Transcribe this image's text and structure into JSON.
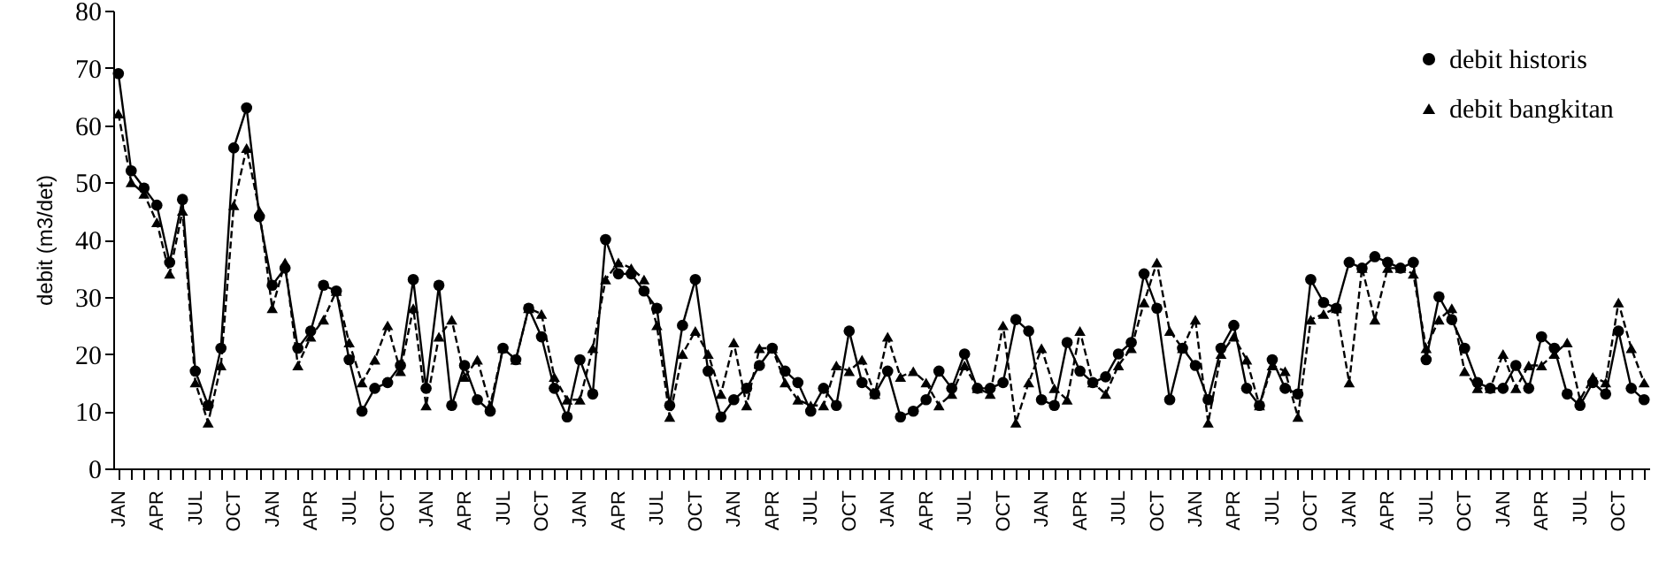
{
  "chart_data": {
    "type": "line",
    "ylabel": "debit (m3/det)",
    "categories": [
      "JAN",
      null,
      null,
      "APR",
      null,
      null,
      "JUL",
      null,
      null,
      "OCT",
      null,
      null,
      "JAN",
      null,
      null,
      "APR",
      null,
      null,
      "JUL",
      null,
      null,
      "OCT",
      null,
      null,
      "JAN",
      null,
      null,
      "APR",
      null,
      null,
      "JUL",
      null,
      null,
      "OCT",
      null,
      null,
      "JAN",
      null,
      null,
      "APR",
      null,
      null,
      "JUL",
      null,
      null,
      "OCT",
      null,
      null,
      "JAN",
      null,
      null,
      "APR",
      null,
      null,
      "JUL",
      null,
      null,
      "OCT",
      null,
      null,
      "JAN",
      null,
      null,
      "APR",
      null,
      null,
      "JUL",
      null,
      null,
      "OCT",
      null,
      null,
      "JAN",
      null,
      null,
      "APR",
      null,
      null,
      "JUL",
      null,
      null,
      "OCT",
      null,
      null,
      "JAN",
      null,
      null,
      "APR",
      null,
      null,
      "JUL",
      null,
      null,
      "OCT",
      null,
      null,
      "JAN",
      null,
      null,
      "APR",
      null,
      null,
      "JUL",
      null,
      null,
      "OCT",
      null,
      null,
      "JAN",
      null,
      null,
      "APR",
      null,
      null,
      "JUL",
      null,
      null,
      "OCT",
      null,
      null
    ],
    "series": [
      {
        "name": "debit historis",
        "color": "#000000",
        "marker": "circle",
        "line_style": "solid",
        "values": [
          69,
          52,
          49,
          46,
          36,
          47,
          17,
          11,
          21,
          56,
          63,
          44,
          32,
          35,
          21,
          24,
          32,
          31,
          19,
          10,
          14,
          15,
          18,
          33,
          14,
          32,
          11,
          18,
          12,
          10,
          21,
          19,
          28,
          23,
          14,
          9,
          19,
          13,
          40,
          34,
          34,
          31,
          28,
          11,
          25,
          33,
          17,
          9,
          12,
          14,
          18,
          21,
          17,
          15,
          10,
          14,
          11,
          24,
          15,
          13,
          17,
          9,
          10,
          12,
          17,
          14,
          20,
          14,
          14,
          15,
          26,
          24,
          12,
          11,
          22,
          17,
          15,
          16,
          20,
          22,
          34,
          28,
          12,
          21,
          18,
          12,
          21,
          25,
          14,
          11,
          19,
          14,
          13,
          33,
          29,
          28,
          36,
          35,
          37,
          36,
          35,
          36,
          19,
          30,
          26,
          21,
          15,
          14,
          14,
          18,
          14,
          23,
          21,
          13,
          11,
          15,
          13,
          24,
          14,
          12
        ]
      },
      {
        "name": "debit bangkitan",
        "color": "#000000",
        "marker": "triangle",
        "line_style": "dashed",
        "values": [
          62,
          50,
          48,
          43,
          34,
          45,
          15,
          8,
          18,
          46,
          56,
          45,
          28,
          36,
          18,
          23,
          26,
          31,
          22,
          15,
          19,
          25,
          17,
          28,
          11,
          23,
          26,
          16,
          19,
          11,
          21,
          19,
          28,
          27,
          16,
          12,
          12,
          21,
          33,
          36,
          35,
          33,
          25,
          9,
          20,
          24,
          20,
          13,
          22,
          11,
          21,
          21,
          15,
          12,
          11,
          11,
          18,
          17,
          19,
          13,
          23,
          16,
          17,
          15,
          11,
          13,
          18,
          14,
          13,
          25,
          8,
          15,
          21,
          14,
          12,
          24,
          15,
          13,
          18,
          21,
          29,
          36,
          24,
          21,
          26,
          8,
          20,
          23,
          19,
          11,
          18,
          17,
          9,
          26,
          27,
          28,
          15,
          35,
          26,
          35,
          35,
          34,
          21,
          26,
          28,
          17,
          14,
          14,
          20,
          14,
          18,
          18,
          20,
          22,
          12,
          16,
          15,
          29,
          21,
          15
        ]
      }
    ],
    "ylim": [
      0,
      80
    ],
    "yticks": [
      0,
      10,
      20,
      30,
      40,
      50,
      60,
      70,
      80
    ],
    "grid": false,
    "legend": "top right"
  }
}
